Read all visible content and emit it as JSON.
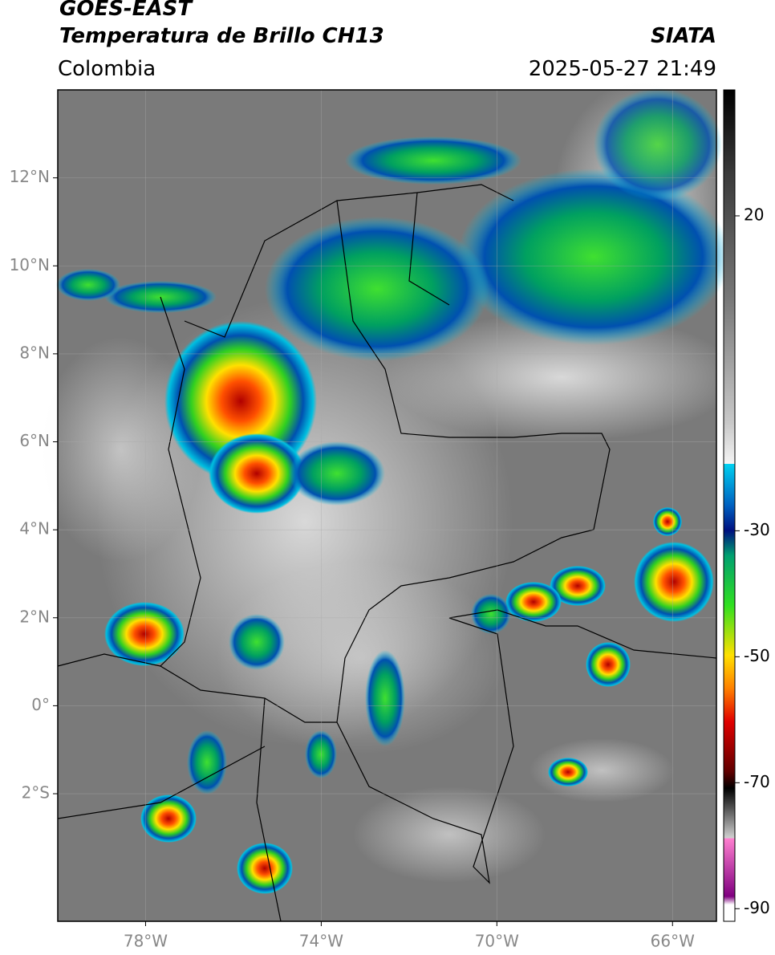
{
  "header": {
    "title_line1": "GOES-EAST",
    "title_line2": "Temperatura de Brillo CH13",
    "source": "SIATA",
    "region": "Colombia",
    "datetime": "2025-05-27 21:49"
  },
  "map": {
    "xlim": [
      -80,
      -65
    ],
    "ylim": [
      -4.9,
      14
    ],
    "xticks": [
      {
        "value": -78,
        "label": "78°W"
      },
      {
        "value": -74,
        "label": "74°W"
      },
      {
        "value": -70,
        "label": "70°W"
      },
      {
        "value": -66,
        "label": "66°W"
      }
    ],
    "yticks": [
      {
        "value": 12,
        "label": "12°N"
      },
      {
        "value": 10,
        "label": "10°N"
      },
      {
        "value": 8,
        "label": "8°N"
      },
      {
        "value": 6,
        "label": "6°N"
      },
      {
        "value": 4,
        "label": "4°N"
      },
      {
        "value": 2,
        "label": "2°N"
      },
      {
        "value": 0,
        "label": "0°"
      },
      {
        "value": -2,
        "label": "2°S"
      }
    ],
    "grid": true
  },
  "colorbar": {
    "lim": [
      -92,
      40
    ],
    "ticks": [
      20,
      -30,
      -50,
      -70,
      -90
    ]
  }
}
